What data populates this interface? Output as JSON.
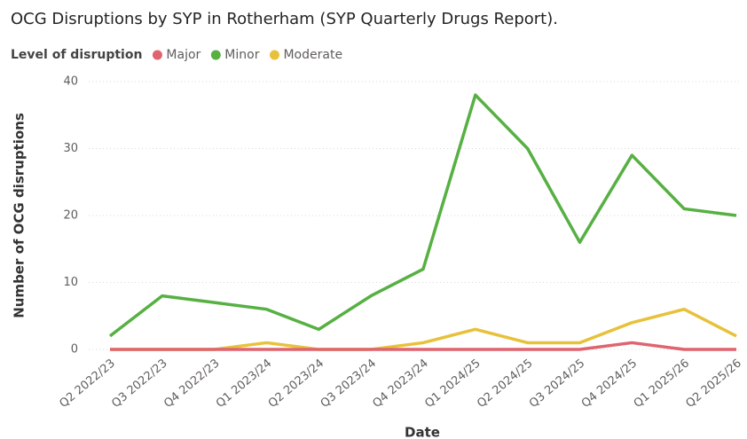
{
  "chart_data": {
    "type": "line",
    "title": "OCG Disruptions by SYP in Rotherham (SYP Quarterly Drugs Report).",
    "legend_title": "Level of disruption",
    "x_label": "Date",
    "y_label": "Number of OCG disruptions",
    "categories": [
      "Q2 2022/23",
      "Q3 2022/23",
      "Q4 2022/23",
      "Q1 2023/24",
      "Q2 2023/24",
      "Q3 2023/24",
      "Q4 2023/24",
      "Q1 2024/25",
      "Q2 2024/25",
      "Q3 2024/25",
      "Q4 2024/25",
      "Q1 2025/26",
      "Q2 2025/26"
    ],
    "series": [
      {
        "name": "Major",
        "color": "#e0646f",
        "values": [
          0,
          0,
          0,
          0,
          0,
          0,
          0,
          0,
          0,
          0,
          1,
          0,
          0
        ]
      },
      {
        "name": "Minor",
        "color": "#56b042",
        "values": [
          2,
          8,
          7,
          6,
          3,
          8,
          12,
          38,
          30,
          16,
          29,
          21,
          20
        ]
      },
      {
        "name": "Moderate",
        "color": "#e8c13b",
        "values": [
          0,
          0,
          0,
          1,
          0,
          0,
          1,
          3,
          1,
          1,
          4,
          6,
          2
        ]
      }
    ],
    "ylim": [
      0,
      40
    ],
    "yticks": [
      0,
      10,
      20,
      30,
      40
    ],
    "grid": true,
    "legend": "top-left"
  }
}
